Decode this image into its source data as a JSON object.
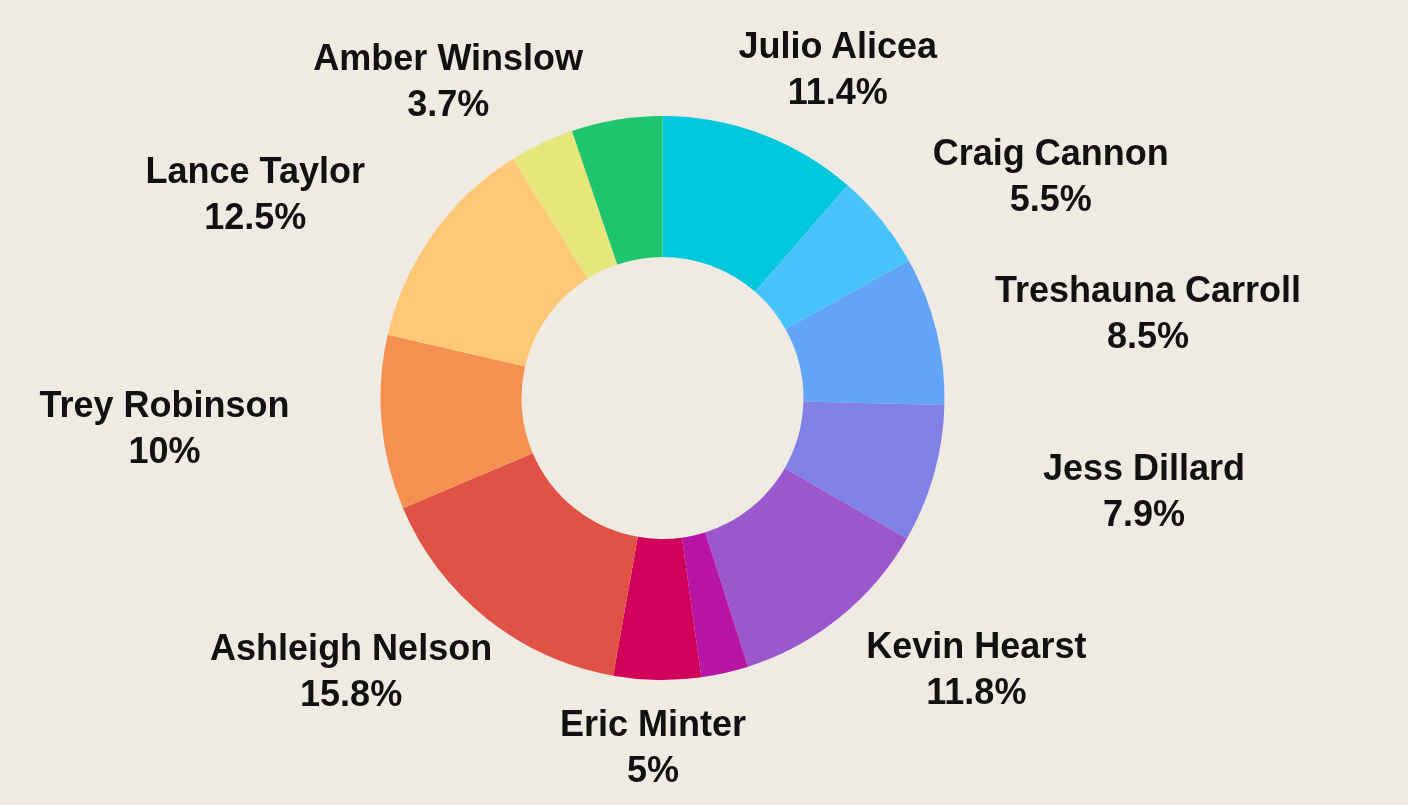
{
  "chart_data": {
    "type": "donut",
    "categories": [
      "Julio Alicea",
      "Craig Cannon",
      "Treshauna Carroll",
      "Jess Dillard",
      "Kevin Hearst",
      null,
      "Eric Minter",
      "Ashleigh Nelson",
      "Trey Robinson",
      "Lance Taylor",
      "Amber Winslow",
      null
    ],
    "values": [
      11.4,
      5.5,
      8.5,
      7.9,
      11.8,
      2.7,
      5,
      15.8,
      10,
      12.5,
      3.7,
      5.2
    ],
    "value_labels": [
      "11.4%",
      "5.5%",
      "8.5%",
      "7.9%",
      "11.8%",
      null,
      "5%",
      "15.8%",
      "10%",
      "12.5%",
      "3.7%",
      null
    ],
    "colors": [
      "#00c8dc",
      "#48c2fa",
      "#62a4f5",
      "#8080e6",
      "#9a58cc",
      "#b814a6",
      "#d0005a",
      "#e05246",
      "#f59150",
      "#fec877",
      "#e6e67a",
      "#1ec46e"
    ],
    "legend": false
  }
}
